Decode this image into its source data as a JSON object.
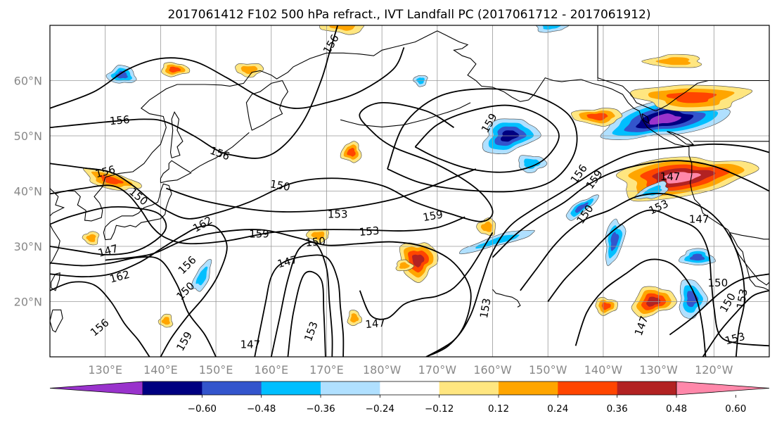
{
  "title": "2017061412 F102 500 hPa refract., IVT Landfall PC (2017061712 - 2017061912)",
  "map": {
    "lon_range": [
      120,
      250
    ],
    "lat_range": [
      10,
      70
    ],
    "lat_ticks": [
      {
        "value": 20,
        "label": "20°N"
      },
      {
        "value": 30,
        "label": "30°N"
      },
      {
        "value": 40,
        "label": "40°N"
      },
      {
        "value": 50,
        "label": "50°N"
      },
      {
        "value": 60,
        "label": "60°N"
      }
    ],
    "lon_ticks": [
      {
        "value": 130,
        "label": "130°E"
      },
      {
        "value": 140,
        "label": "140°E"
      },
      {
        "value": 150,
        "label": "150°E"
      },
      {
        "value": 160,
        "label": "160°E"
      },
      {
        "value": 170,
        "label": "170°E"
      },
      {
        "value": 180,
        "label": "180°W"
      },
      {
        "value": 190,
        "label": "170°W"
      },
      {
        "value": 200,
        "label": "160°W"
      },
      {
        "value": 210,
        "label": "150°W"
      },
      {
        "value": 220,
        "label": "140°W"
      },
      {
        "value": 230,
        "label": "130°W"
      },
      {
        "value": 240,
        "label": "120°W"
      }
    ],
    "grid": true
  },
  "colorbar": {
    "colors": [
      "#9933cc",
      "#000080",
      "#3355cc",
      "#00bfff",
      "#b0e0ff",
      "#ffffff",
      "#ffe680",
      "#ffa500",
      "#ff4500",
      "#b22222",
      "#ff88aa"
    ],
    "boundaries": [
      -0.6,
      -0.48,
      -0.36,
      -0.24,
      -0.12,
      0.12,
      0.24,
      0.36,
      0.48,
      0.6
    ],
    "tick_labels": [
      "−0.60",
      "−0.48",
      "−0.36",
      "−0.24",
      "−0.12",
      "0.12",
      "0.24",
      "0.36",
      "0.48",
      "0.60"
    ],
    "extend": "both"
  },
  "contour_labels": [
    {
      "text": "156",
      "lon": 170.8,
      "lat": 66.6,
      "angle": -60
    },
    {
      "text": "156",
      "lon": 132.6,
      "lat": 52.8,
      "angle": -5
    },
    {
      "text": "156",
      "lon": 130.0,
      "lat": 43.5,
      "angle": -15
    },
    {
      "text": "150",
      "lon": 136.0,
      "lat": 39.0,
      "angle": 40
    },
    {
      "text": "156",
      "lon": 150.7,
      "lat": 46.8,
      "angle": 20
    },
    {
      "text": "150",
      "lon": 161.6,
      "lat": 41.0,
      "angle": 10
    },
    {
      "text": "153",
      "lon": 172.0,
      "lat": 35.8,
      "angle": 0
    },
    {
      "text": "162",
      "lon": 147.6,
      "lat": 34.0,
      "angle": -30
    },
    {
      "text": "159",
      "lon": 157.8,
      "lat": 32.2,
      "angle": 0
    },
    {
      "text": "150",
      "lon": 168.0,
      "lat": 30.8,
      "angle": -5
    },
    {
      "text": "153",
      "lon": 177.7,
      "lat": 32.7,
      "angle": -5
    },
    {
      "text": "159",
      "lon": 189.2,
      "lat": 35.5,
      "angle": -10
    },
    {
      "text": "147",
      "lon": 130.5,
      "lat": 29.2,
      "angle": -15
    },
    {
      "text": "162",
      "lon": 132.6,
      "lat": 24.5,
      "angle": -15
    },
    {
      "text": "156",
      "lon": 144.8,
      "lat": 26.6,
      "angle": -45
    },
    {
      "text": "150",
      "lon": 144.5,
      "lat": 21.9,
      "angle": -45
    },
    {
      "text": "147",
      "lon": 162.9,
      "lat": 27.2,
      "angle": -15
    },
    {
      "text": "156",
      "lon": 129.0,
      "lat": 15.3,
      "angle": -40
    },
    {
      "text": "159",
      "lon": 144.3,
      "lat": 12.8,
      "angle": -60
    },
    {
      "text": "147",
      "lon": 156.2,
      "lat": 12.2,
      "angle": 0
    },
    {
      "text": "153",
      "lon": 167.2,
      "lat": 14.6,
      "angle": -70
    },
    {
      "text": "147",
      "lon": 178.8,
      "lat": 16.0,
      "angle": -5
    },
    {
      "text": "153",
      "lon": 198.7,
      "lat": 18.8,
      "angle": -80
    },
    {
      "text": "159",
      "lon": 199.4,
      "lat": 52.3,
      "angle": -60
    },
    {
      "text": "156",
      "lon": 215.6,
      "lat": 43.1,
      "angle": -55
    },
    {
      "text": "159",
      "lon": 218.4,
      "lat": 42.1,
      "angle": -55
    },
    {
      "text": "150",
      "lon": 216.7,
      "lat": 35.8,
      "angle": -55
    },
    {
      "text": "147",
      "lon": 232.1,
      "lat": 42.6,
      "angle": 0
    },
    {
      "text": "153",
      "lon": 230.0,
      "lat": 37.1,
      "angle": -25
    },
    {
      "text": "147",
      "lon": 237.3,
      "lat": 34.9,
      "angle": 0
    },
    {
      "text": "150",
      "lon": 240.7,
      "lat": 23.4,
      "angle": 0
    },
    {
      "text": "153",
      "lon": 245.1,
      "lat": 20.5,
      "angle": -80
    },
    {
      "text": "150",
      "lon": 242.5,
      "lat": 19.8,
      "angle": -60
    },
    {
      "text": "147",
      "lon": 226.9,
      "lat": 15.6,
      "angle": -70
    },
    {
      "text": "153",
      "lon": 243.8,
      "lat": 13.3,
      "angle": -15
    }
  ]
}
